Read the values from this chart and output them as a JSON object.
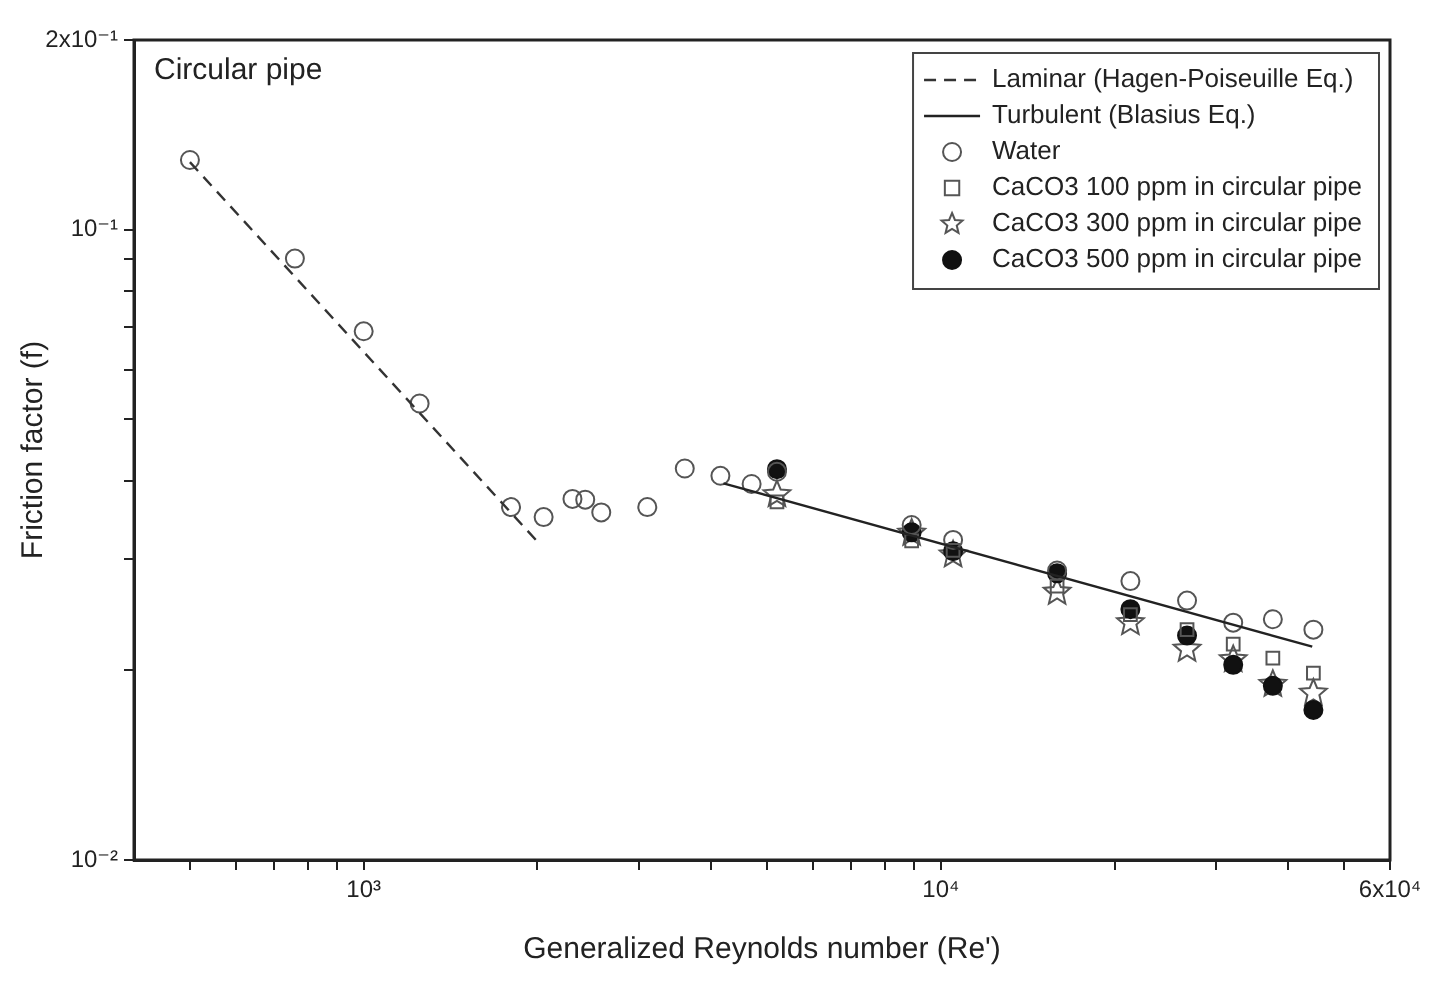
{
  "chart_data": {
    "type": "scatter",
    "xlabel": "Generalized Reynolds number (Re')",
    "ylabel": "Friction factor (f)",
    "annotations": [
      "Circular pipe"
    ],
    "log": "xy",
    "grid": false,
    "legend": "top right",
    "xlim": [
      400,
      60000
    ],
    "xticks": [
      {
        "value": 500,
        "label": null
      },
      {
        "value": 600,
        "label": null
      },
      {
        "value": 700,
        "label": null
      },
      {
        "value": 800,
        "label": null
      },
      {
        "value": 900,
        "label": null
      },
      {
        "value": 1000,
        "label": "10³"
      },
      {
        "value": 2000,
        "label": null
      },
      {
        "value": 3000,
        "label": null
      },
      {
        "value": 4000,
        "label": null
      },
      {
        "value": 5000,
        "label": null
      },
      {
        "value": 6000,
        "label": null
      },
      {
        "value": 7000,
        "label": null
      },
      {
        "value": 8000,
        "label": null
      },
      {
        "value": 9000,
        "label": null
      },
      {
        "value": 10000,
        "label": "10⁴"
      },
      {
        "value": 20000,
        "label": null
      },
      {
        "value": 30000,
        "label": null
      },
      {
        "value": 40000,
        "label": null
      },
      {
        "value": 50000,
        "label": null
      },
      {
        "value": 60000,
        "label": "6x10⁴"
      }
    ],
    "ylim": [
      0.01,
      0.2
    ],
    "yticks": [
      {
        "value": 0.01,
        "label": "10⁻²"
      },
      {
        "value": 0.02,
        "label": null
      },
      {
        "value": 0.03,
        "label": null
      },
      {
        "value": 0.04,
        "label": null
      },
      {
        "value": 0.05,
        "label": null
      },
      {
        "value": 0.06,
        "label": null
      },
      {
        "value": 0.07,
        "label": null
      },
      {
        "value": 0.08,
        "label": null
      },
      {
        "value": 0.09,
        "label": null
      },
      {
        "value": 0.1,
        "label": "10⁻¹"
      },
      {
        "value": 0.2,
        "label": "2x10⁻¹"
      }
    ],
    "series": [
      {
        "name": "Laminar (Hagen-Poiseuille Eq.)",
        "type": "line",
        "marker": "none",
        "line_style": "dashed",
        "color": "#333333",
        "x": [
          500,
          2000
        ],
        "values": [
          0.128,
          0.032
        ]
      },
      {
        "name": "Turbulent (Blasius Eq.)",
        "type": "line",
        "marker": "none",
        "line_style": "solid",
        "color": "#222222",
        "x": [
          4200,
          44000
        ],
        "values": [
          0.0396,
          0.0218
        ]
      },
      {
        "name": "Water",
        "type": "scatter",
        "marker": "circle",
        "color": "#555555",
        "x": [
          500,
          760,
          1000,
          1250,
          1800,
          2050,
          2300,
          2420,
          2580,
          3100,
          3600,
          4150,
          4700,
          5200,
          8900,
          10500,
          15900,
          21300,
          26700,
          32100,
          37600,
          44200
        ],
        "values": [
          0.129,
          0.09,
          0.069,
          0.053,
          0.0363,
          0.035,
          0.0374,
          0.0373,
          0.0356,
          0.0363,
          0.0418,
          0.0407,
          0.0395,
          0.0413,
          0.034,
          0.0322,
          0.0288,
          0.0277,
          0.0258,
          0.0238,
          0.0241,
          0.0232
        ]
      },
      {
        "name": "CaCO3 100 ppm in circular pipe",
        "type": "scatter",
        "marker": "square",
        "color": "#555555",
        "x": [
          5200,
          8900,
          10500,
          15900,
          21300,
          26700,
          32100,
          37600,
          44200
        ],
        "values": [
          0.037,
          0.0321,
          0.031,
          0.0272,
          0.0245,
          0.0232,
          0.022,
          0.0209,
          0.0198
        ]
      },
      {
        "name": "CaCO3 300 ppm in circular pipe",
        "type": "scatter",
        "marker": "star",
        "color": "#555555",
        "x": [
          5200,
          8900,
          10500,
          15900,
          21300,
          26700,
          32100,
          37600,
          44200
        ],
        "values": [
          0.038,
          0.033,
          0.0305,
          0.0266,
          0.0238,
          0.0216,
          0.0208,
          0.019,
          0.0184
        ]
      },
      {
        "name": "CaCO3 500 ppm in circular pipe",
        "type": "scatter",
        "marker": "circle",
        "color": "#111111",
        "x": [
          5200,
          8900,
          10500,
          15900,
          21300,
          26700,
          32100,
          37600,
          44200
        ],
        "values": [
          0.0417,
          0.0331,
          0.0309,
          0.0285,
          0.025,
          0.0227,
          0.0204,
          0.0189,
          0.0173
        ]
      }
    ]
  }
}
